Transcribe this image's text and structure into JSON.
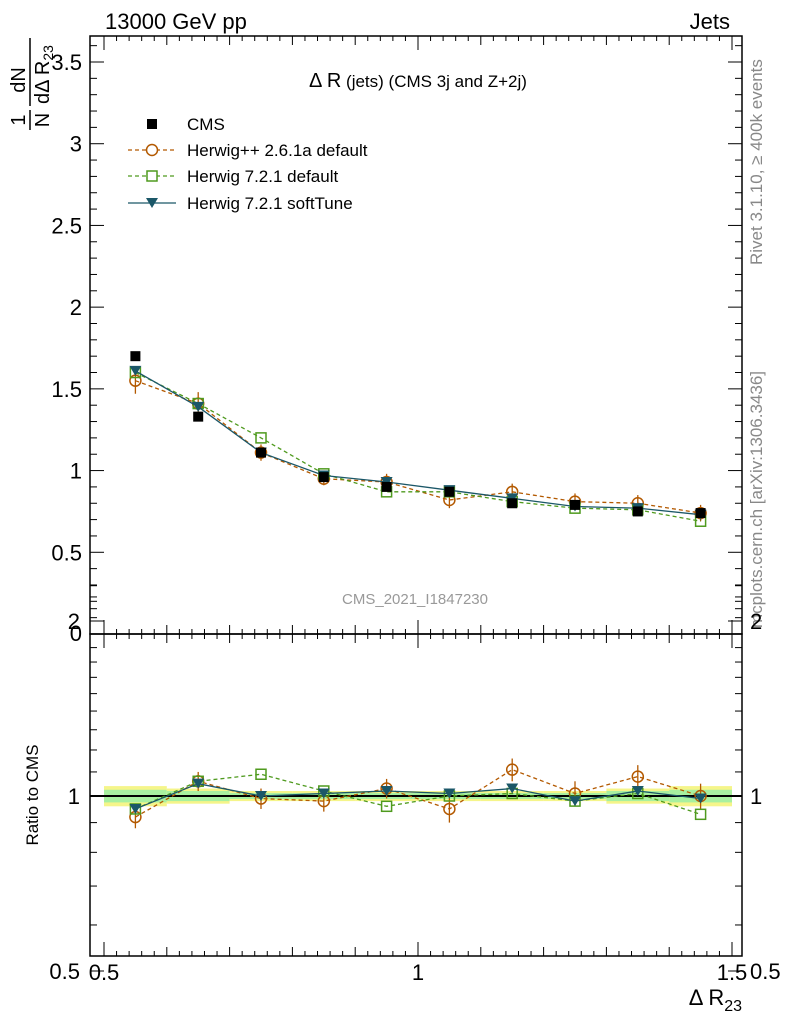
{
  "header": {
    "left": "13000 GeV pp",
    "right": "Jets"
  },
  "plot_title": {
    "main": "Δ R",
    "suffix": " (jets) (CMS 3j and Z+2j)"
  },
  "watermark": "CMS_2021_I1847230",
  "side_labels": {
    "rivet": "Rivet 3.1.10, ≥ 400k events",
    "mcplots": "mcplots.cern.ch [arXiv:1306.3436]"
  },
  "y_label_top": {
    "frac_num": "1",
    "frac_den": "N",
    "d_num": "dN",
    "d_den_prefix": "dΔ R",
    "d_den_sub": "23"
  },
  "y_label_bottom": "Ratio to CMS",
  "x_label": {
    "main": "Δ R",
    "sub": "23"
  },
  "colors": {
    "cms": "#000000",
    "herwigpp": "#b35900",
    "herwig721": "#4f9a1e",
    "softtune": "#1b5768",
    "band_yellow": "#f5f58a",
    "band_green": "#a8f0a0"
  },
  "chart_data": [
    {
      "type": "line",
      "panel": "main",
      "x": [
        0.55,
        0.65,
        0.75,
        0.85,
        0.95,
        1.05,
        1.15,
        1.25,
        1.35,
        1.45
      ],
      "xlim": [
        0.5,
        1.5
      ],
      "ylim": [
        0,
        3.7
      ],
      "y_ticks": [
        "0.5",
        "1",
        "1.5",
        "2",
        "2.5",
        "3",
        "3.5"
      ],
      "y_tick_values": [
        0.5,
        1,
        1.5,
        2,
        2.5,
        3,
        3.5
      ],
      "series": [
        {
          "name": "CMS",
          "style": "data-square",
          "values": [
            1.7,
            1.33,
            1.11,
            0.96,
            0.9,
            0.87,
            0.8,
            0.79,
            0.75,
            0.74
          ]
        },
        {
          "name": "Herwig++ 2.6.1a default",
          "style": "open-circle-dashed",
          "values": [
            1.55,
            1.41,
            1.11,
            0.95,
            0.93,
            0.82,
            0.87,
            0.81,
            0.8,
            0.74
          ],
          "errors": [
            0.08,
            0.07,
            0.05,
            0.04,
            0.05,
            0.05,
            0.05,
            0.05,
            0.05,
            0.05
          ]
        },
        {
          "name": "Herwig 7.2.1 default",
          "style": "open-square-dashed",
          "values": [
            1.6,
            1.41,
            1.2,
            0.98,
            0.87,
            0.87,
            0.81,
            0.77,
            0.76,
            0.69
          ]
        },
        {
          "name": "Herwig 7.2.1 softTune",
          "style": "filled-triangle-solid",
          "values": [
            1.61,
            1.39,
            1.11,
            0.97,
            0.93,
            0.88,
            0.83,
            0.78,
            0.77,
            0.73
          ]
        }
      ]
    },
    {
      "type": "line",
      "panel": "ratio",
      "x": [
        0.55,
        0.65,
        0.75,
        0.85,
        0.95,
        1.05,
        1.15,
        1.25,
        1.35,
        1.45
      ],
      "x_ticks": [
        "0.5",
        "1",
        "1.5"
      ],
      "x_tick_values": [
        0.5,
        1.0,
        1.5
      ],
      "xlim": [
        0.5,
        1.5
      ],
      "ylim": [
        0.35,
        2.35
      ],
      "y_ticks": [
        "0.5",
        "1",
        "2"
      ],
      "y_tick_values": [
        0.5,
        1,
        2
      ],
      "series": [
        {
          "name": "Herwig++ 2.6.1a default",
          "style": "open-circle-dashed",
          "values": [
            0.92,
            1.06,
            0.99,
            0.98,
            1.03,
            0.95,
            1.11,
            1.01,
            1.08,
            1.0
          ],
          "errors": [
            0.04,
            0.04,
            0.04,
            0.04,
            0.04,
            0.05,
            0.05,
            0.05,
            0.05,
            0.05
          ]
        },
        {
          "name": "Herwig 7.2.1 default",
          "style": "open-square-dashed",
          "values": [
            0.95,
            1.06,
            1.09,
            1.02,
            0.96,
            1.0,
            1.01,
            0.98,
            1.01,
            0.93
          ]
        },
        {
          "name": "Herwig 7.2.1 softTune",
          "style": "filled-triangle-solid",
          "values": [
            0.95,
            1.05,
            1.0,
            1.01,
            1.02,
            1.01,
            1.03,
            0.98,
            1.02,
            0.99
          ]
        }
      ],
      "bands": {
        "yellow": [
          0.04,
          0.03,
          0.02,
          0.02,
          0.02,
          0.02,
          0.02,
          0.02,
          0.03,
          0.04
        ],
        "green": [
          0.025,
          0.02,
          0.012,
          0.012,
          0.012,
          0.012,
          0.012,
          0.012,
          0.02,
          0.025
        ]
      }
    }
  ]
}
